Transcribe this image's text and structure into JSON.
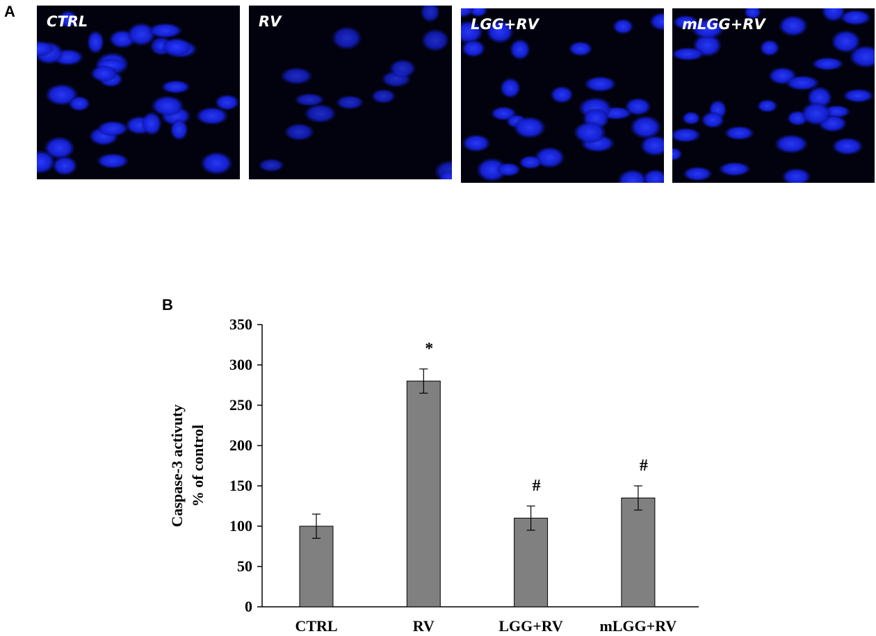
{
  "panel_labels": [
    "A",
    "B"
  ],
  "images": [
    "CTRL",
    "RV",
    "LGG+RV",
    "mLGG+RV"
  ],
  "chart_data": {
    "type": "bar",
    "ylabel": [
      "Caspase-3 activuty",
      "% of control"
    ],
    "categories": [
      "CTRL",
      "RV",
      "LGG+RV",
      "mLGG+RV"
    ],
    "values": [
      100,
      280,
      110,
      135
    ],
    "errors": [
      15,
      15,
      15,
      15
    ],
    "bar_labels": [
      null,
      "*",
      "#",
      "#"
    ],
    "color": "#808080",
    "ylim": [
      0,
      350
    ],
    "yticks": [
      0,
      50,
      100,
      150,
      200,
      250,
      300,
      350
    ]
  }
}
